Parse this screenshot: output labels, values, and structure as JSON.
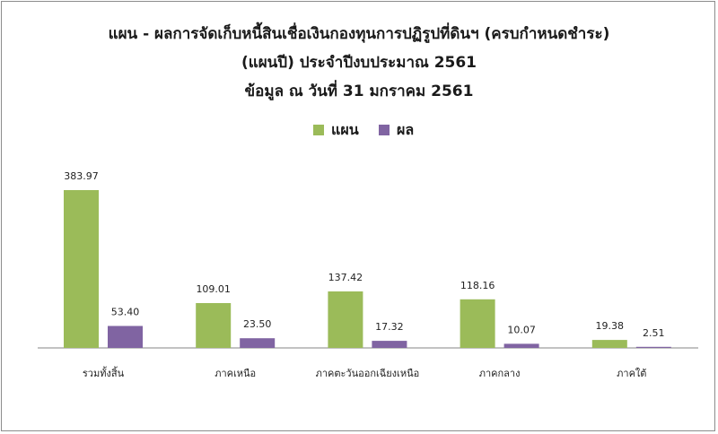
{
  "title_lines": [
    "แผน - ผลการจัดเก็บหนี้สินเชื่อเงินกองทุนการปฏิรูปที่ดินฯ (ครบกำหนดชำระ)",
    "(แผนปี)  ประจำปีงบประมาณ 2561",
    "ข้อมูล ณ วันที่ 31 มกราคม 2561"
  ],
  "colors": {
    "plan": "#9bbb59",
    "result": "#8064a2",
    "axis": "#868686",
    "border": "#8c8c8c"
  },
  "chart_data": {
    "type": "bar",
    "title": "แผน - ผลการจัดเก็บหนี้สินเชื่อเงินกองทุนการปฏิรูปที่ดินฯ (ครบกำหนดชำระ) (แผนปี)  ประจำปีงบประมาณ 2561 ข้อมูล ณ วันที่ 31 มกราคม 2561",
    "categories": [
      "รวมทั้งสิ้น",
      "ภาคเหนือ",
      "ภาคตะวันออกเฉียงเหนือ",
      "ภาคกลาง",
      "ภาคใต้"
    ],
    "series": [
      {
        "name": "แผน",
        "values": [
          383.97,
          109.01,
          137.42,
          118.16,
          19.38
        ],
        "labels": [
          "383.97",
          "109.01",
          "137.42",
          "118.16",
          "19.38"
        ]
      },
      {
        "name": "ผล",
        "values": [
          53.4,
          23.5,
          17.32,
          10.07,
          2.51
        ],
        "labels": [
          "53.40",
          "23.50",
          "17.32",
          "10.07",
          "2.51"
        ]
      }
    ],
    "ylim": [
      0,
      383.97
    ],
    "legend": "top",
    "grid": false
  }
}
